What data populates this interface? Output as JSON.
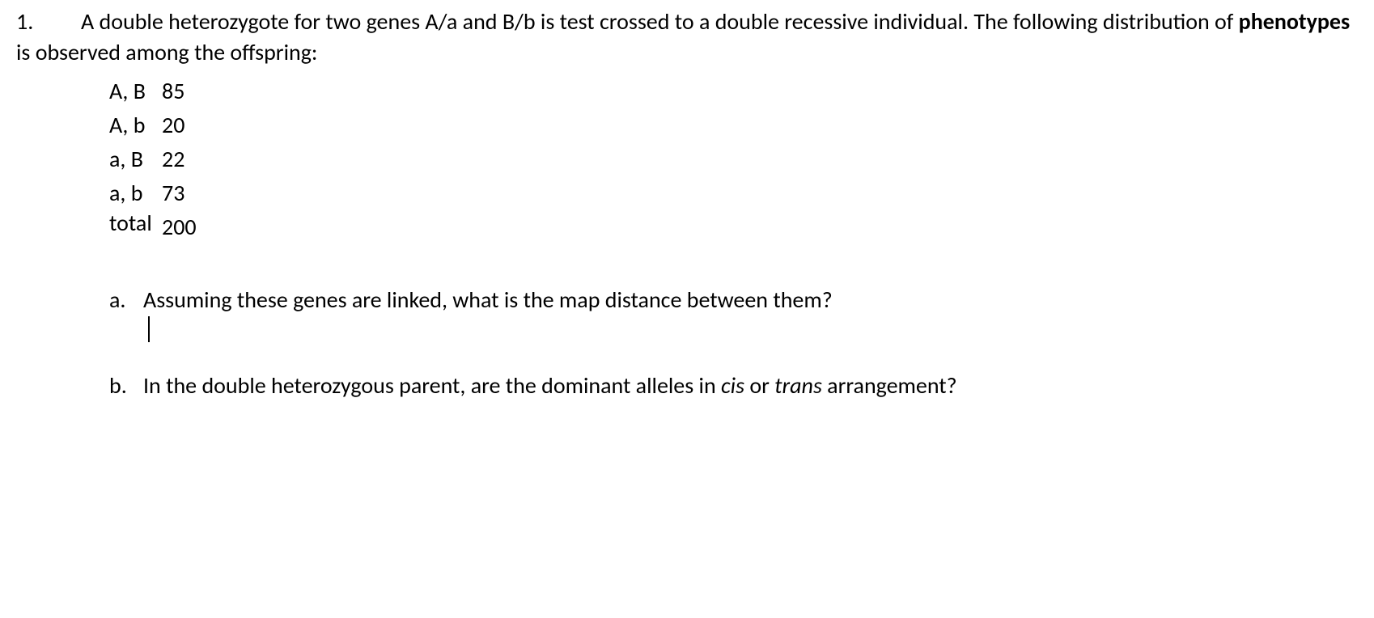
{
  "question": {
    "number": "1.",
    "intro_part1": "A double heterozygote for two genes A/a and B/b is test crossed to a double recessive individual. The following distribution of ",
    "intro_bold": "phenotypes",
    "intro_part2": " is observed among the offspring:"
  },
  "data": {
    "rows": [
      {
        "label": "A, B",
        "value": "85"
      },
      {
        "label": "A, b",
        "value": "20"
      },
      {
        "label": "a, B",
        "value": "22"
      },
      {
        "label": "a, b",
        "value": "73"
      }
    ],
    "total_label": "total",
    "total_value": "200"
  },
  "subquestions": {
    "a": {
      "letter": "a.",
      "text": "Assuming these genes are linked, what is the map distance between them?"
    },
    "b": {
      "letter": "b.",
      "text_part1": "In the double heterozygous parent, are the dominant alleles in ",
      "italic1": "cis",
      "text_part2": " or ",
      "italic2": "trans",
      "text_part3": " arrangement?"
    }
  },
  "styling": {
    "font_family": "Calibri",
    "font_size_pt": 21,
    "text_color": "#000000",
    "background_color": "#ffffff"
  }
}
